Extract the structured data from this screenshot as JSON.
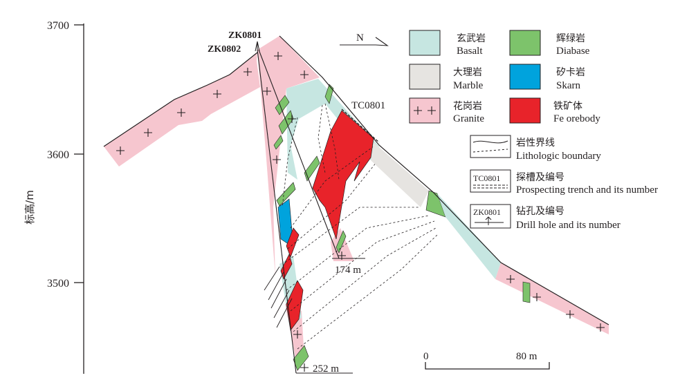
{
  "y_axis": {
    "label": "标高/m",
    "ticks": [
      "3700",
      "3600",
      "3500"
    ]
  },
  "drill_holes": [
    "ZK0801",
    "ZK0802"
  ],
  "trench": "TC0801",
  "hole_depths": [
    "174 m",
    "252 m"
  ],
  "north": "N",
  "scale_bar": {
    "start": "0",
    "end": "80 m"
  },
  "legend": {
    "rocks": [
      {
        "zh": "玄武岩",
        "en": "Basalt",
        "color": "#c6e6e1"
      },
      {
        "zh": "辉绿岩",
        "en": "Diabase",
        "color": "#7dc36b"
      },
      {
        "zh": "大理岩",
        "en": "Marble",
        "color": "#e6e4e1"
      },
      {
        "zh": "矽卡岩",
        "en": "Skarn",
        "color": "#00a3dd"
      },
      {
        "zh": "花岗岩",
        "en": "Granite",
        "color": "#f6c6cf"
      },
      {
        "zh": "铁矿体",
        "en": "Fe orebody",
        "color": "#e8232a"
      }
    ],
    "lines": [
      {
        "zh": "岩性界线",
        "en": "Lithologic boundary"
      },
      {
        "zh": "探槽及编号",
        "en": "Prospecting trench and its number",
        "code": "TC0801"
      },
      {
        "zh": "钻孔及编号",
        "en": "Drill hole and its number",
        "code": "ZK0801"
      }
    ]
  }
}
